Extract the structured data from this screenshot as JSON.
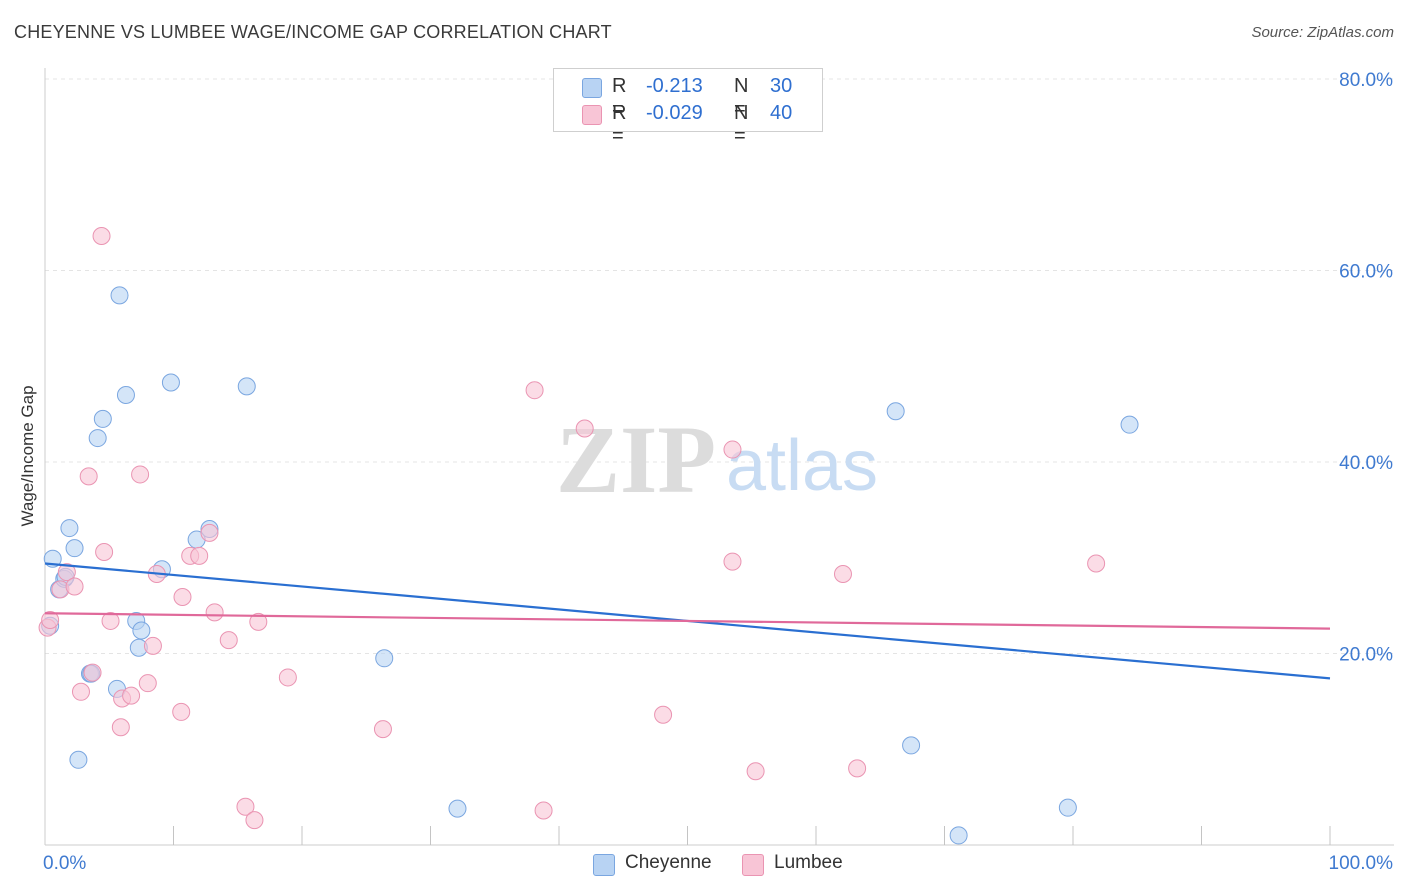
{
  "title": "CHEYENNE VS LUMBEE WAGE/INCOME GAP CORRELATION CHART",
  "source": "Source: ZipAtlas.com",
  "watermark": {
    "part1": "ZIP",
    "part2": "atlas"
  },
  "legend": {
    "rows": [
      {
        "r_label": "R =",
        "r_value": "-0.213",
        "n_label": "N =",
        "n_value": "30"
      },
      {
        "r_label": "R =",
        "r_value": "-0.029",
        "n_label": "N =",
        "n_value": "40"
      }
    ]
  },
  "colors": {
    "cheyenne_fill": "#b8d3f3",
    "cheyenne_stroke": "#7aa6e0",
    "cheyenne_line": "#2a6fd1",
    "lumbee_fill": "#f8c5d6",
    "lumbee_stroke": "#ea94b2",
    "lumbee_line": "#e0699a",
    "axis_text": "#3f7ad0"
  },
  "chart_data": {
    "type": "scatter",
    "title": "CHEYENNE VS LUMBEE WAGE/INCOME GAP CORRELATION CHART",
    "xlabel": "",
    "ylabel": "Wage/Income Gap",
    "xlim": [
      0,
      100
    ],
    "ylim": [
      0,
      80
    ],
    "x_tick_labels": [
      "0.0%",
      "100.0%"
    ],
    "y_ticks": [
      20,
      40,
      60,
      80
    ],
    "y_tick_labels": [
      "20.0%",
      "40.0%",
      "60.0%",
      "80.0%"
    ],
    "grid": true,
    "legend_position": "top-center",
    "series": [
      {
        "name": "Cheyenne",
        "r": -0.213,
        "n": 30,
        "trend": {
          "x": [
            0,
            100
          ],
          "y": [
            29.4,
            17.4
          ]
        },
        "points": [
          [
            0.6,
            29.9
          ],
          [
            1.1,
            26.7
          ],
          [
            1.5,
            27.8
          ],
          [
            1.9,
            33.1
          ],
          [
            2.3,
            31.0
          ],
          [
            2.6,
            8.9
          ],
          [
            3.5,
            17.9
          ],
          [
            4.1,
            42.5
          ],
          [
            4.5,
            44.5
          ],
          [
            5.6,
            16.3
          ],
          [
            5.8,
            57.4
          ],
          [
            6.3,
            47.0
          ],
          [
            7.1,
            23.4
          ],
          [
            7.3,
            20.6
          ],
          [
            7.5,
            22.4
          ],
          [
            9.1,
            28.8
          ],
          [
            9.8,
            48.3
          ],
          [
            11.8,
            31.9
          ],
          [
            12.8,
            33.0
          ],
          [
            15.7,
            47.9
          ],
          [
            26.4,
            19.5
          ],
          [
            32.1,
            3.8
          ],
          [
            66.2,
            45.3
          ],
          [
            67.4,
            10.4
          ],
          [
            71.1,
            1.0
          ],
          [
            79.6,
            3.9
          ],
          [
            84.4,
            43.9
          ],
          [
            0.4,
            22.9
          ],
          [
            1.6,
            28.0
          ],
          [
            3.6,
            17.9
          ]
        ]
      },
      {
        "name": "Lumbee",
        "r": -0.029,
        "n": 40,
        "trend": {
          "x": [
            0,
            100
          ],
          "y": [
            24.2,
            22.6
          ]
        },
        "points": [
          [
            0.2,
            22.7
          ],
          [
            0.4,
            23.5
          ],
          [
            1.2,
            26.7
          ],
          [
            1.7,
            28.5
          ],
          [
            2.3,
            27.0
          ],
          [
            2.8,
            16.0
          ],
          [
            3.4,
            38.5
          ],
          [
            3.7,
            18.0
          ],
          [
            4.4,
            63.6
          ],
          [
            4.6,
            30.6
          ],
          [
            5.1,
            23.4
          ],
          [
            5.9,
            12.3
          ],
          [
            6.0,
            15.3
          ],
          [
            6.7,
            15.6
          ],
          [
            7.4,
            38.7
          ],
          [
            8.0,
            16.9
          ],
          [
            8.4,
            20.8
          ],
          [
            8.7,
            28.3
          ],
          [
            10.6,
            13.9
          ],
          [
            10.7,
            25.9
          ],
          [
            11.3,
            30.2
          ],
          [
            12.0,
            30.2
          ],
          [
            12.8,
            32.6
          ],
          [
            13.2,
            24.3
          ],
          [
            14.3,
            21.4
          ],
          [
            15.6,
            4.0
          ],
          [
            16.3,
            2.6
          ],
          [
            16.6,
            23.3
          ],
          [
            18.9,
            17.5
          ],
          [
            26.3,
            12.1
          ],
          [
            38.1,
            47.5
          ],
          [
            38.8,
            3.6
          ],
          [
            42.0,
            43.5
          ],
          [
            48.1,
            13.6
          ],
          [
            53.5,
            29.6
          ],
          [
            53.5,
            41.3
          ],
          [
            55.3,
            7.7
          ],
          [
            62.1,
            28.3
          ],
          [
            63.2,
            8.0
          ],
          [
            81.8,
            29.4
          ]
        ]
      }
    ]
  },
  "bottom_legend": {
    "items": [
      "Cheyenne",
      "Lumbee"
    ]
  }
}
